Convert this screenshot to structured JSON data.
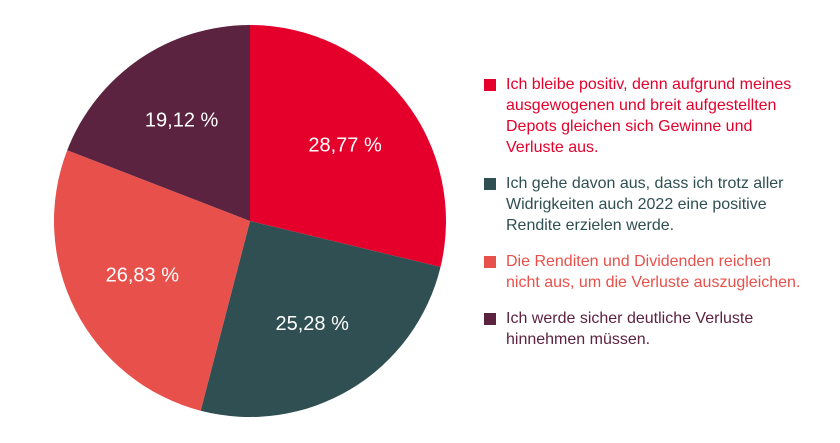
{
  "chart_data": {
    "type": "pie",
    "slices": [
      {
        "label": "Ich bleibe positiv, denn aufgrund meines ausgewogenen und breit aufgestellten Depots gleichen sich Gewinne und Verluste aus.",
        "value": 28.77,
        "value_label": "28,77 %",
        "color": "#e4002b"
      },
      {
        "label": "Ich gehe davon aus, dass ich trotz aller Widrigkeiten auch 2022 eine positive Rendite erzielen werde.",
        "value": 25.28,
        "value_label": "25,28 %",
        "color": "#2f4f52"
      },
      {
        "label": "Die Renditen und Dividenden reichen nicht aus, um die Verluste auszugleichen.",
        "value": 26.83,
        "value_label": "26,83 %",
        "color": "#e8504b"
      },
      {
        "label": "Ich werde sicher deutliche Verluste hinnehmen müssen.",
        "value": 19.12,
        "value_label": "19,12 %",
        "color": "#5c2340"
      }
    ],
    "legend_position": "right",
    "start_angle": "top, clockwise"
  },
  "legend_text_colors": [
    "#e4002b",
    "#2f4f52",
    "#e8504b",
    "#5c2340"
  ]
}
